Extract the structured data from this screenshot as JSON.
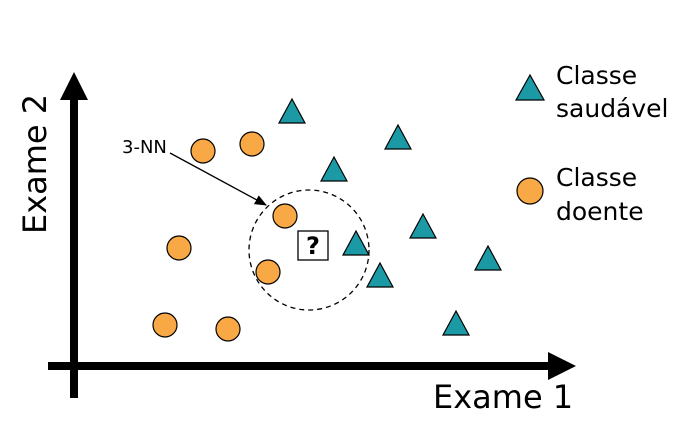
{
  "diagram": {
    "x_axis_label": "Exame 1",
    "y_axis_label": "Exame 2",
    "annotation": "3-NN",
    "query_symbol": "?",
    "legend": {
      "healthy": {
        "line1": "Classe",
        "line2": "saudável",
        "icon": "triangle-icon"
      },
      "sick": {
        "line1": "Classe",
        "line2": "doente",
        "icon": "circle-icon"
      }
    },
    "colors": {
      "healthy": "#1b9aa6",
      "sick": "#f9a846",
      "outline": "#000000"
    }
  }
}
